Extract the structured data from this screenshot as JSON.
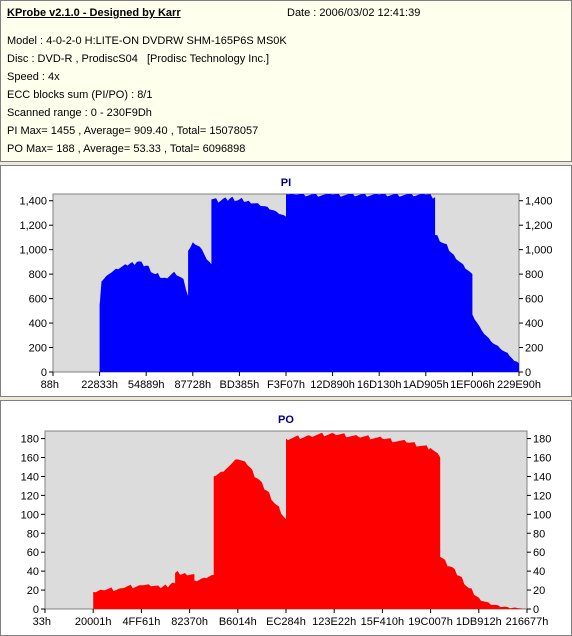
{
  "info": {
    "title": "KProbe v2.1.0 - Designed by Karr",
    "date": "Date : 2006/03/02 12:41:39",
    "lines": [
      "Model : 4-0-2-0 H:LITE-ON DVDRW SHM-165P6S MS0K",
      "Disc : DVD-R , ProdiscS04   [Prodisc Technology Inc.]",
      "Speed : 4x",
      "ECC blocks sum (PI/PO) : 8/1",
      "Scanned range : 0 - 230F9Dh",
      "PI Max= 1455 , Average= 909.40 , Total= 15078057",
      "PO Max= 188 , Average= 53.33 , Total= 6096898"
    ]
  },
  "colors": {
    "pi": "#0000ff",
    "po": "#ff0000",
    "plot_bg": "#dcdcdc",
    "panel_bg": "#ffffff"
  },
  "chart_data": [
    {
      "type": "area",
      "title": "PI",
      "x_tick_labels": [
        "88h",
        "22833h",
        "54889h",
        "87728h",
        "BD385h",
        "F3F07h",
        "12D890h",
        "16D130h",
        "1AD905h",
        "1EF006h",
        "229E90h"
      ],
      "y_tick_labels": [
        "0",
        "200",
        "400",
        "600",
        "800",
        "1,000",
        "1,200",
        "1,400"
      ],
      "ylim": [
        0,
        1455
      ],
      "xlim": [
        0,
        1
      ],
      "series": [
        {
          "x": [
            0,
            0.1,
            0.1,
            0.102,
            0.104,
            0.12,
            0.14,
            0.16,
            0.18,
            0.2,
            0.22,
            0.24,
            0.26,
            0.28,
            0.29,
            0.29,
            0.3,
            0.32,
            0.33,
            0.34,
            0.34,
            0.36,
            0.38,
            0.4,
            0.42,
            0.44,
            0.46,
            0.48,
            0.5,
            0.5,
            0.52,
            0.6,
            0.7,
            0.8,
            0.82,
            0.82,
            0.84,
            0.86,
            0.88,
            0.9,
            0.9,
            0.92,
            0.94,
            0.96,
            0.98,
            0.99,
            1.0
          ],
          "y": [
            0,
            0,
            550,
            640,
            740,
            800,
            840,
            870,
            900,
            870,
            800,
            770,
            820,
            760,
            620,
            990,
            1060,
            1000,
            920,
            880,
            1410,
            1400,
            1420,
            1410,
            1400,
            1380,
            1350,
            1310,
            1270,
            1455,
            1450,
            1450,
            1450,
            1450,
            1430,
            1120,
            1050,
            960,
            880,
            800,
            470,
            340,
            250,
            190,
            130,
            90,
            70
          ]
        }
      ]
    },
    {
      "type": "area",
      "title": "PO",
      "x_tick_labels": [
        "33h",
        "20001h",
        "4FF61h",
        "82370h",
        "B6014h",
        "EC284h",
        "123E22h",
        "15F410h",
        "19C007h",
        "1DB912h",
        "216677h"
      ],
      "y_tick_labels": [
        "0",
        "20",
        "40",
        "60",
        "80",
        "100",
        "120",
        "140",
        "160",
        "180"
      ],
      "ylim": [
        0,
        188
      ],
      "xlim": [
        0,
        1
      ],
      "series": [
        {
          "x": [
            0,
            0.1,
            0.1,
            0.12,
            0.16,
            0.2,
            0.22,
            0.24,
            0.26,
            0.27,
            0.27,
            0.29,
            0.31,
            0.31,
            0.33,
            0.35,
            0.35,
            0.37,
            0.38,
            0.4,
            0.42,
            0.44,
            0.46,
            0.48,
            0.5,
            0.5,
            0.55,
            0.6,
            0.65,
            0.7,
            0.75,
            0.8,
            0.82,
            0.82,
            0.84,
            0.86,
            0.88,
            0.9,
            0.92,
            0.94,
            0.96,
            0.98,
            1.0
          ],
          "y": [
            0,
            0,
            18,
            20,
            22,
            25,
            24,
            22,
            26,
            27,
            38,
            38,
            37,
            30,
            33,
            36,
            140,
            145,
            150,
            158,
            152,
            138,
            125,
            110,
            95,
            180,
            183,
            185,
            182,
            180,
            176,
            170,
            160,
            55,
            45,
            35,
            22,
            12,
            7,
            4,
            2,
            1,
            0
          ]
        }
      ]
    }
  ]
}
